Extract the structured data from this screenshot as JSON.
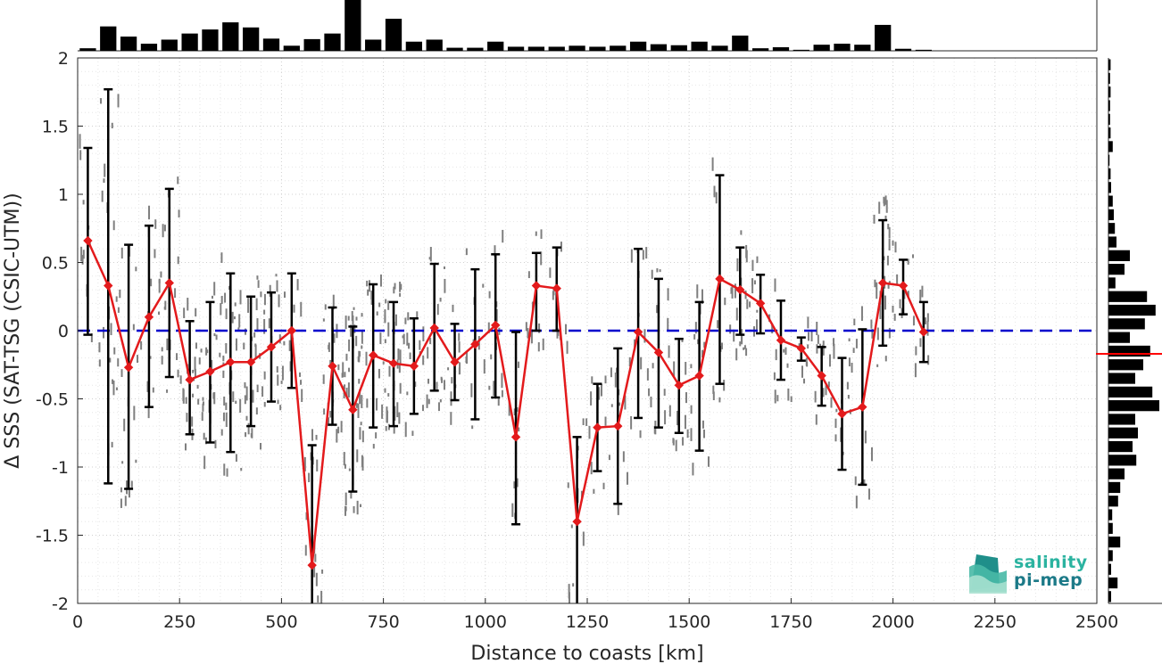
{
  "chart_data": {
    "type": "line",
    "xlabel": "Distance to coasts [km]",
    "ylabel": "Δ SSS (SAT-TSG (CSIC-UTM))",
    "xlim": [
      0,
      2500
    ],
    "ylim": [
      -2,
      2
    ],
    "xticks": [
      "0",
      "250",
      "500",
      "750",
      "1000",
      "1250",
      "1500",
      "1750",
      "2000",
      "2250",
      "2500"
    ],
    "yticks": [
      "2",
      "1.5",
      "1",
      "0.5",
      "0",
      "-0.5",
      "-1",
      "-1.5",
      "-2"
    ],
    "grid": true,
    "reference_line": {
      "y": 0,
      "color": "#0000cc",
      "style": "dashed"
    },
    "series": [
      {
        "color": "#e31a1c",
        "marker": "diamond",
        "x": [
          25,
          75,
          125,
          175,
          225,
          275,
          325,
          375,
          425,
          475,
          525,
          575,
          625,
          675,
          725,
          775,
          825,
          875,
          925,
          975,
          1025,
          1075,
          1125,
          1175,
          1225,
          1275,
          1325,
          1375,
          1425,
          1475,
          1525,
          1575,
          1625,
          1675,
          1725,
          1775,
          1825,
          1875,
          1925,
          1975,
          2025,
          2075
        ],
        "y": [
          0.66,
          0.33,
          -0.27,
          0.1,
          0.35,
          -0.36,
          -0.3,
          -0.23,
          -0.23,
          -0.12,
          0.0,
          -1.72,
          -0.26,
          -0.58,
          -0.18,
          -0.24,
          -0.26,
          0.02,
          -0.23,
          -0.1,
          0.04,
          -0.78,
          0.33,
          0.31,
          -1.4,
          -0.71,
          -0.7,
          -0.01,
          -0.16,
          -0.4,
          -0.33,
          0.38,
          0.3,
          0.2,
          -0.07,
          -0.13,
          -0.33,
          -0.61,
          -0.56,
          0.35,
          0.33,
          -0.01
        ],
        "err_low": [
          -0.03,
          -1.12,
          -1.16,
          -0.56,
          -0.34,
          -0.76,
          -0.82,
          -0.89,
          -0.7,
          -0.52,
          -0.42,
          -2.05,
          -0.69,
          -1.18,
          -0.71,
          -0.7,
          -0.61,
          -0.44,
          -0.51,
          -0.65,
          -0.49,
          -1.42,
          0.0,
          0.0,
          -2.05,
          -1.03,
          -1.27,
          -0.64,
          -0.71,
          -0.75,
          -0.88,
          -0.39,
          -0.03,
          -0.02,
          -0.36,
          -0.22,
          -0.55,
          -1.02,
          -1.13,
          -0.11,
          0.12,
          -0.23
        ],
        "err_high": [
          1.34,
          1.77,
          0.63,
          0.77,
          1.04,
          0.07,
          0.21,
          0.42,
          0.25,
          0.28,
          0.42,
          -0.84,
          0.17,
          0.03,
          0.34,
          0.21,
          0.09,
          0.49,
          0.05,
          0.45,
          0.56,
          -0.01,
          0.57,
          0.61,
          -0.78,
          -0.39,
          -0.13,
          0.6,
          0.38,
          -0.06,
          0.21,
          1.14,
          0.61,
          0.41,
          0.22,
          -0.05,
          -0.12,
          -0.2,
          0.01,
          0.81,
          0.52,
          0.21
        ]
      }
    ],
    "scatter_color": "#7f7f7f",
    "top_histogram": {
      "bin_width": 50,
      "x": [
        25,
        75,
        125,
        175,
        225,
        275,
        325,
        375,
        425,
        475,
        525,
        575,
        625,
        675,
        725,
        775,
        825,
        875,
        925,
        975,
        1025,
        1075,
        1125,
        1175,
        1225,
        1275,
        1325,
        1375,
        1425,
        1475,
        1525,
        1575,
        1625,
        1675,
        1725,
        1775,
        1825,
        1875,
        1925,
        1975,
        2025,
        2075
      ],
      "counts": [
        0.05,
        0.48,
        0.28,
        0.14,
        0.22,
        0.34,
        0.42,
        0.56,
        0.46,
        0.24,
        0.1,
        0.23,
        0.34,
        1.0,
        0.22,
        0.63,
        0.18,
        0.22,
        0.06,
        0.06,
        0.18,
        0.08,
        0.08,
        0.08,
        0.1,
        0.08,
        0.1,
        0.18,
        0.13,
        0.11,
        0.18,
        0.1,
        0.3,
        0.05,
        0.07,
        0.02,
        0.12,
        0.14,
        0.12,
        0.51,
        0.04,
        0.02
      ]
    },
    "right_histogram": {
      "bin_width": 0.1,
      "y": [
        1.95,
        1.85,
        1.75,
        1.65,
        1.55,
        1.45,
        1.35,
        1.25,
        1.15,
        1.05,
        0.95,
        0.85,
        0.75,
        0.65,
        0.55,
        0.45,
        0.35,
        0.25,
        0.15,
        0.05,
        -0.05,
        -0.15,
        -0.25,
        -0.35,
        -0.45,
        -0.55,
        -0.65,
        -0.75,
        -0.85,
        -0.95,
        -1.05,
        -1.15,
        -1.25,
        -1.35,
        -1.45,
        -1.55,
        -1.65,
        -1.75,
        -1.85,
        -1.95
      ],
      "counts": [
        0.04,
        0.03,
        0.04,
        0.03,
        0.03,
        0.04,
        0.08,
        0.02,
        0.04,
        0.05,
        0.08,
        0.1,
        0.12,
        0.15,
        0.4,
        0.3,
        0.13,
        0.72,
        0.88,
        0.68,
        0.4,
        0.78,
        0.65,
        0.5,
        0.82,
        0.95,
        0.5,
        0.55,
        0.45,
        0.52,
        0.3,
        0.22,
        0.18,
        0.07,
        0.08,
        0.22,
        0.08,
        0.05,
        0.17,
        0.05
      ]
    },
    "mean_marker": {
      "y": -0.17,
      "color": "#ff0000"
    }
  },
  "logo": {
    "line1": "salinity",
    "line2": "pi-mep"
  }
}
